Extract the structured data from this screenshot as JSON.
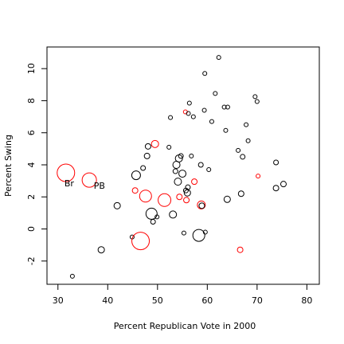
{
  "chart_data": {
    "type": "scatter",
    "xlabel": "Percent Republican Vote in 2000",
    "ylabel": "Percent Swing",
    "xlim": [
      27.8,
      82.5
    ],
    "ylim": [
      -3.45,
      11.35
    ],
    "xticks": [
      30,
      40,
      50,
      60,
      70,
      80
    ],
    "yticks": [
      -2,
      0,
      2,
      4,
      6,
      8,
      10
    ],
    "grid": false,
    "legend": "none",
    "marker": "open-circle",
    "size_encoding": "circle radius",
    "colors": {
      "black": "#000000",
      "red": "#ff0000"
    },
    "annotations": [
      {
        "text": "Br",
        "x": 31.3,
        "y": 2.85
      },
      {
        "text": "PB",
        "x": 37.2,
        "y": 2.7
      }
    ],
    "points": [
      {
        "x": 31.6,
        "y": 3.5,
        "r": 11,
        "color": "red"
      },
      {
        "x": 36.3,
        "y": 3.05,
        "r": 9,
        "color": "red"
      },
      {
        "x": 32.9,
        "y": -2.95,
        "r": 2.5,
        "color": "black"
      },
      {
        "x": 38.7,
        "y": -1.3,
        "r": 4,
        "color": "black"
      },
      {
        "x": 41.9,
        "y": 1.45,
        "r": 4,
        "color": "black"
      },
      {
        "x": 44.9,
        "y": -0.5,
        "r": 2.5,
        "color": "black"
      },
      {
        "x": 45.5,
        "y": 2.4,
        "r": 3.5,
        "color": "red"
      },
      {
        "x": 45.7,
        "y": 3.35,
        "r": 5.5,
        "color": "black"
      },
      {
        "x": 46.6,
        "y": -0.75,
        "r": 11,
        "color": "red"
      },
      {
        "x": 47.1,
        "y": 3.8,
        "r": 3,
        "color": "black"
      },
      {
        "x": 47.6,
        "y": 2.05,
        "r": 7.5,
        "color": "red"
      },
      {
        "x": 47.9,
        "y": 4.55,
        "r": 3.5,
        "color": "black"
      },
      {
        "x": 48.1,
        "y": 5.15,
        "r": 3.5,
        "color": "black"
      },
      {
        "x": 48.8,
        "y": 0.95,
        "r": 7,
        "color": "black"
      },
      {
        "x": 49.1,
        "y": 0.45,
        "r": 3,
        "color": "black"
      },
      {
        "x": 49.5,
        "y": 5.3,
        "r": 4.5,
        "color": "red"
      },
      {
        "x": 49.9,
        "y": 0.75,
        "r": 2.5,
        "color": "black"
      },
      {
        "x": 51.4,
        "y": 1.8,
        "r": 8,
        "color": "red"
      },
      {
        "x": 52.3,
        "y": 5.1,
        "r": 2.5,
        "color": "black"
      },
      {
        "x": 52.6,
        "y": 6.95,
        "r": 2.5,
        "color": "black"
      },
      {
        "x": 53.1,
        "y": 0.9,
        "r": 4.5,
        "color": "black"
      },
      {
        "x": 53.6,
        "y": 3.6,
        "r": 3,
        "color": "black"
      },
      {
        "x": 53.8,
        "y": 4.0,
        "r": 4.5,
        "color": "black"
      },
      {
        "x": 54.1,
        "y": 2.95,
        "r": 4.5,
        "color": "black"
      },
      {
        "x": 54.3,
        "y": 4.4,
        "r": 4.5,
        "color": "black"
      },
      {
        "x": 54.4,
        "y": 2.0,
        "r": 3.5,
        "color": "red"
      },
      {
        "x": 54.7,
        "y": 4.55,
        "r": 3,
        "color": "black"
      },
      {
        "x": 55.0,
        "y": 3.45,
        "r": 4.5,
        "color": "black"
      },
      {
        "x": 55.3,
        "y": -0.25,
        "r": 2.5,
        "color": "black"
      },
      {
        "x": 55.6,
        "y": 7.3,
        "r": 2.5,
        "color": "red"
      },
      {
        "x": 55.7,
        "y": 2.4,
        "r": 3,
        "color": "black"
      },
      {
        "x": 55.8,
        "y": 1.8,
        "r": 3.5,
        "color": "red"
      },
      {
        "x": 56.0,
        "y": 2.25,
        "r": 4,
        "color": "black"
      },
      {
        "x": 56.1,
        "y": 2.6,
        "r": 3,
        "color": "black"
      },
      {
        "x": 56.2,
        "y": 7.2,
        "r": 2.5,
        "color": "black"
      },
      {
        "x": 56.4,
        "y": 7.85,
        "r": 2.5,
        "color": "black"
      },
      {
        "x": 56.8,
        "y": 4.55,
        "r": 2.5,
        "color": "black"
      },
      {
        "x": 57.2,
        "y": 7.0,
        "r": 2.5,
        "color": "black"
      },
      {
        "x": 57.4,
        "y": 2.95,
        "r": 3.5,
        "color": "red"
      },
      {
        "x": 58.3,
        "y": -0.4,
        "r": 7.5,
        "color": "black"
      },
      {
        "x": 58.7,
        "y": 4.0,
        "r": 3,
        "color": "black"
      },
      {
        "x": 58.8,
        "y": 1.5,
        "r": 5,
        "color": "red"
      },
      {
        "x": 58.9,
        "y": 1.45,
        "r": 3.5,
        "color": "black"
      },
      {
        "x": 59.4,
        "y": 7.4,
        "r": 2.5,
        "color": "black"
      },
      {
        "x": 59.5,
        "y": 9.7,
        "r": 2.5,
        "color": "black"
      },
      {
        "x": 59.6,
        "y": -0.2,
        "r": 2.5,
        "color": "black"
      },
      {
        "x": 60.3,
        "y": 3.7,
        "r": 2.5,
        "color": "black"
      },
      {
        "x": 60.9,
        "y": 6.7,
        "r": 2.5,
        "color": "black"
      },
      {
        "x": 61.6,
        "y": 8.45,
        "r": 2.5,
        "color": "black"
      },
      {
        "x": 62.3,
        "y": 10.7,
        "r": 2.5,
        "color": "black"
      },
      {
        "x": 63.4,
        "y": 7.6,
        "r": 2.5,
        "color": "black"
      },
      {
        "x": 63.7,
        "y": 6.15,
        "r": 2.5,
        "color": "black"
      },
      {
        "x": 64.0,
        "y": 1.85,
        "r": 4,
        "color": "black"
      },
      {
        "x": 64.1,
        "y": 7.6,
        "r": 2.5,
        "color": "black"
      },
      {
        "x": 66.2,
        "y": 4.9,
        "r": 2.5,
        "color": "black"
      },
      {
        "x": 66.6,
        "y": -1.3,
        "r": 3.5,
        "color": "red"
      },
      {
        "x": 66.8,
        "y": 2.2,
        "r": 3.5,
        "color": "black"
      },
      {
        "x": 67.1,
        "y": 4.5,
        "r": 3,
        "color": "black"
      },
      {
        "x": 67.8,
        "y": 6.5,
        "r": 2.5,
        "color": "black"
      },
      {
        "x": 68.2,
        "y": 5.5,
        "r": 2.5,
        "color": "black"
      },
      {
        "x": 69.6,
        "y": 8.25,
        "r": 2.5,
        "color": "black"
      },
      {
        "x": 70.0,
        "y": 7.95,
        "r": 2.5,
        "color": "black"
      },
      {
        "x": 70.2,
        "y": 3.3,
        "r": 2.5,
        "color": "red"
      },
      {
        "x": 73.8,
        "y": 2.55,
        "r": 3.5,
        "color": "black"
      },
      {
        "x": 73.8,
        "y": 4.15,
        "r": 3,
        "color": "black"
      },
      {
        "x": 75.3,
        "y": 2.8,
        "r": 3.5,
        "color": "black"
      }
    ]
  }
}
